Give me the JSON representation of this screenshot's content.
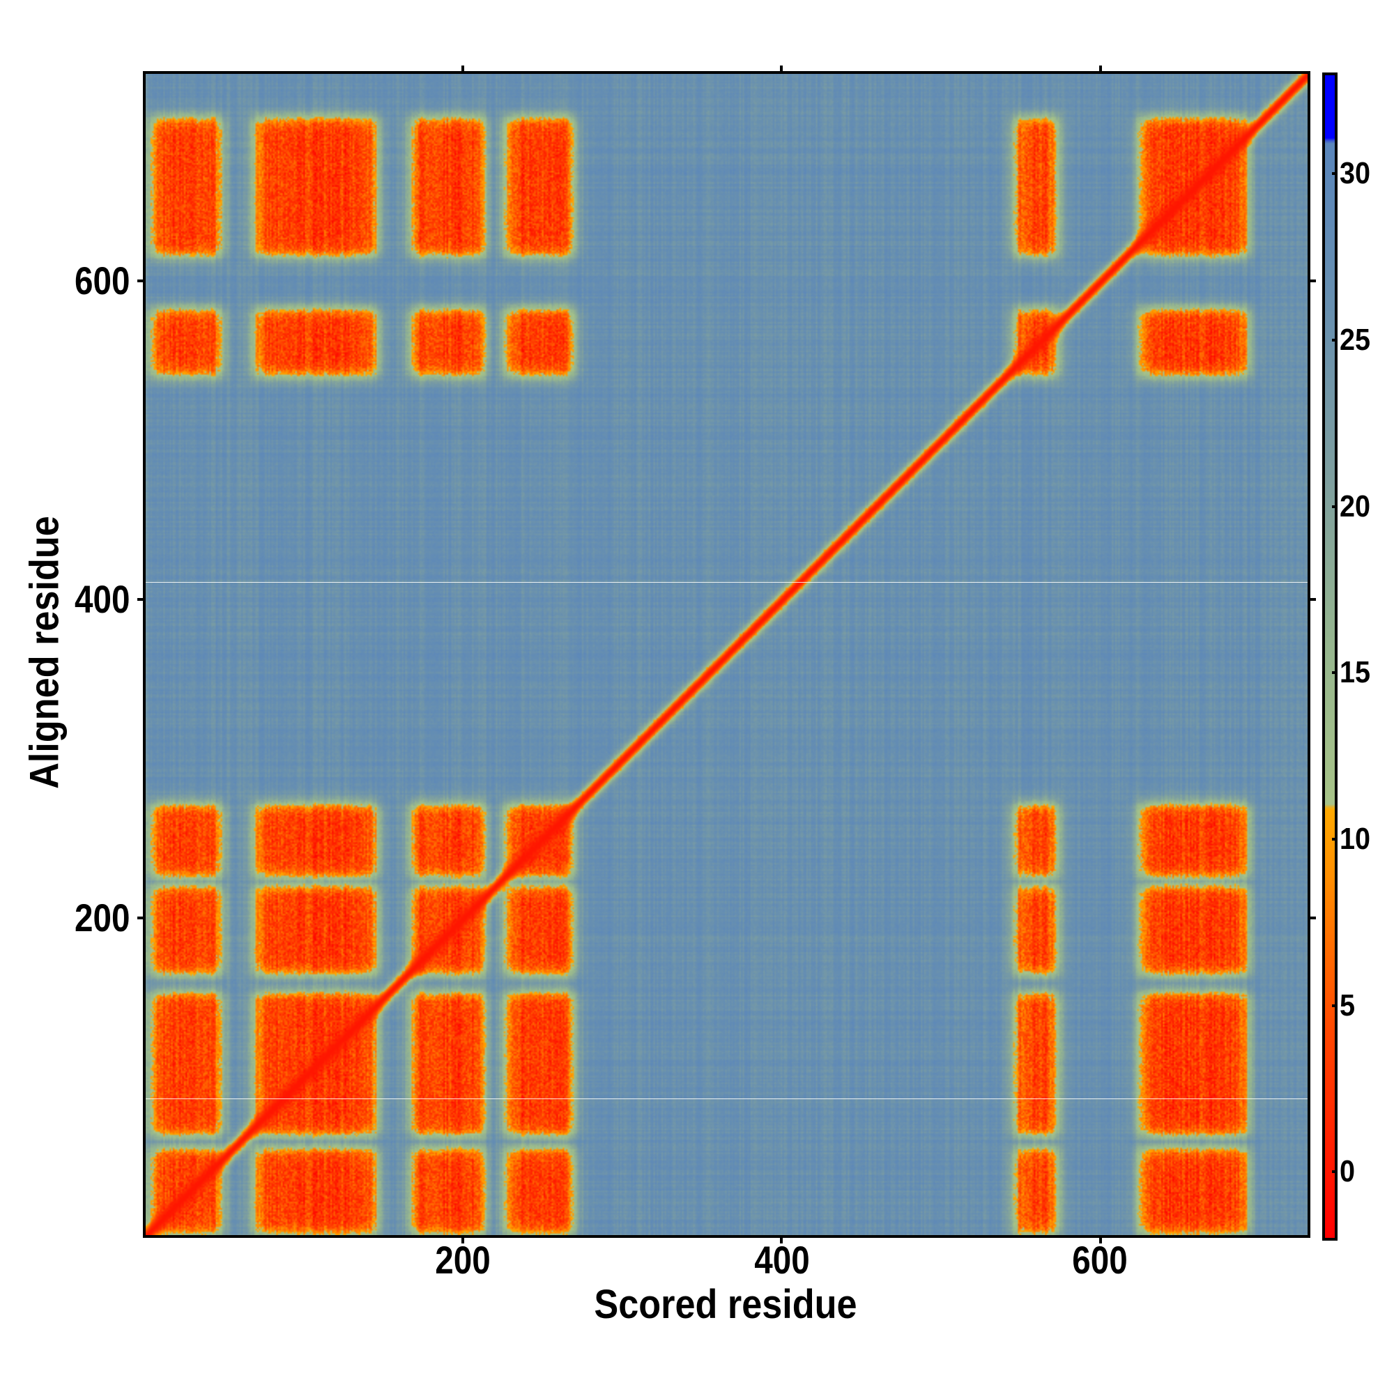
{
  "chart_data": {
    "type": "heatmap",
    "title": "",
    "xlabel": "Scored residue",
    "ylabel": "Aligned residue",
    "xlim": [
      1,
      730
    ],
    "ylim": [
      1,
      730
    ],
    "x_ticks": [
      200,
      400,
      600
    ],
    "y_ticks": [
      200,
      400,
      600
    ],
    "colorbar": {
      "range": [
        -1.9,
        33
      ],
      "ticks": [
        0,
        5,
        10,
        15,
        20,
        25,
        30
      ],
      "stops": [
        {
          "v": -1.9,
          "color": "#ff0000"
        },
        {
          "v": 1,
          "color": "#ff2200"
        },
        {
          "v": 4,
          "color": "#ff4400"
        },
        {
          "v": 7,
          "color": "#ff7000"
        },
        {
          "v": 9,
          "color": "#ff9000"
        },
        {
          "v": 11,
          "color": "#ffaa00"
        },
        {
          "v": 11.1,
          "color": "#a8c488"
        },
        {
          "v": 16,
          "color": "#96b68f"
        },
        {
          "v": 21,
          "color": "#7e9fa0"
        },
        {
          "v": 26,
          "color": "#6890b0"
        },
        {
          "v": 31,
          "color": "#5a86bc"
        },
        {
          "v": 31.1,
          "color": "#0000ff"
        },
        {
          "v": 33,
          "color": "#0000ff"
        }
      ]
    },
    "background_value": 26,
    "diagonal_value": 0,
    "contact_column_ranges": [
      [
        3,
        49
      ],
      [
        68,
        147
      ],
      [
        166,
        214
      ],
      [
        225,
        270
      ],
      [
        545,
        573
      ],
      [
        623,
        693
      ]
    ],
    "contact_row_ranges": [
      [
        1,
        57
      ],
      [
        63,
        155
      ],
      [
        164,
        222
      ],
      [
        225,
        273
      ],
      [
        540,
        584
      ],
      [
        615,
        704
      ]
    ],
    "contact_value": 3,
    "blank_rows": [
      85,
      408
    ]
  }
}
